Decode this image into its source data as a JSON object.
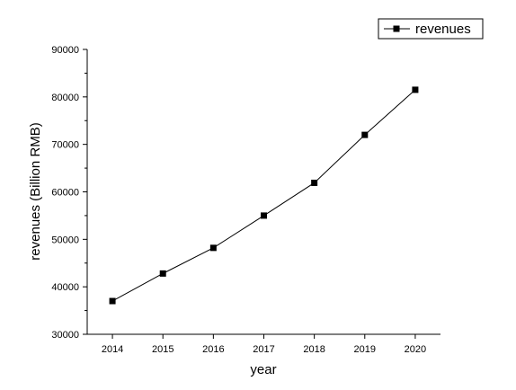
{
  "chart_data": {
    "type": "line",
    "x": [
      2014,
      2015,
      2016,
      2017,
      2018,
      2019,
      2020
    ],
    "series": [
      {
        "name": "revenues",
        "values": [
          37000,
          42800,
          48200,
          55000,
          61900,
          72000,
          81500
        ],
        "marker": "square"
      }
    ],
    "xticks": [
      "2014",
      "2015",
      "2016",
      "2017",
      "2018",
      "2019",
      "2020"
    ],
    "yticks": [
      "30000",
      "40000",
      "50000",
      "60000",
      "70000",
      "80000",
      "90000"
    ],
    "xlabel": "year",
    "ylabel": "revenues (Billion RMB)",
    "ylim": [
      30000,
      90000
    ],
    "xlim": [
      2013.5,
      2020.5
    ],
    "grid": false,
    "legend_position": "top-right",
    "colors": {
      "line": "#000000",
      "marker": "#000000",
      "axis": "#000000"
    }
  }
}
